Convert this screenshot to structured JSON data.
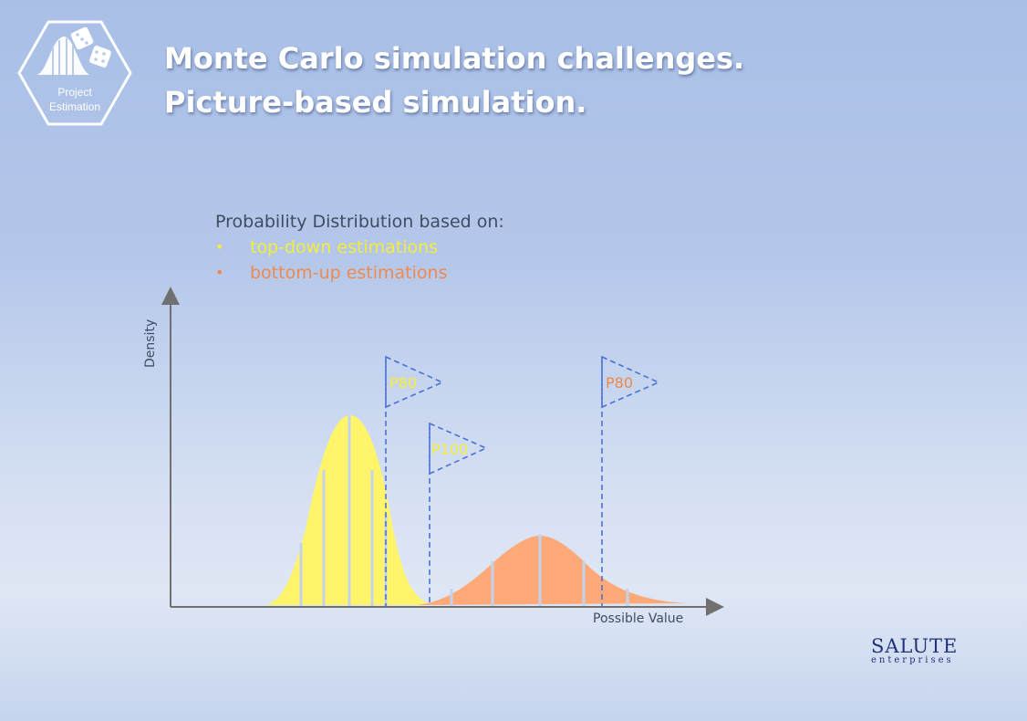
{
  "logo": {
    "line1": "Project",
    "line2": "Estimation"
  },
  "title": {
    "line1": "Monte Carlo simulation challenges.",
    "line2": "Picture-based simulation."
  },
  "legend": {
    "heading": "Probability Distribution based on:",
    "items": [
      {
        "bullet": "•",
        "label": "top-down estimations",
        "color": "#f2ec3c"
      },
      {
        "bullet": "•",
        "label": "bottom-up estimations",
        "color": "#ee8a4e"
      }
    ]
  },
  "chart_data": {
    "type": "area",
    "title": "",
    "xlabel": "Possible Value",
    "ylabel": "Density",
    "series": [
      {
        "color": "#fff46a"
      },
      {
        "color": "#ffa878"
      }
    ],
    "markers": [
      {
        "label": "P80",
        "series": 0,
        "label_color": "#f5ee3a"
      },
      {
        "label": "P100",
        "series": 0,
        "label_color": "#f5ee3a"
      },
      {
        "label": "P80",
        "series": 1,
        "label_color": "#f08848"
      }
    ],
    "marker_line_color": "#4a72d6"
  },
  "brand": {
    "name": "SALUTE",
    "sub": "enterprises"
  }
}
